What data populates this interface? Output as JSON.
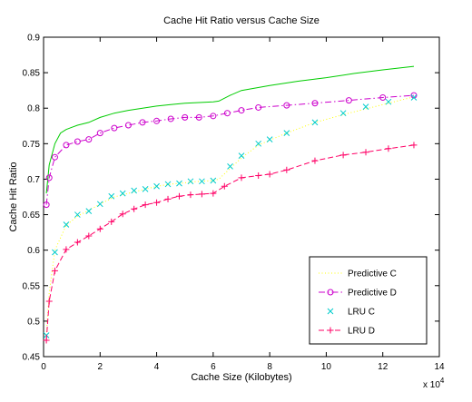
{
  "chart_data": {
    "type": "line",
    "title": "Cache Hit Ratio versus Cache Size",
    "xlabel": "Cache Size (Kilobytes)",
    "ylabel": "Cache Hit Ratio",
    "x_multiplier_label": "x 10",
    "x_multiplier_exponent": "4",
    "xlim": [
      0,
      14
    ],
    "ylim": [
      0.45,
      0.9
    ],
    "x_ticks": [
      0,
      2,
      4,
      6,
      8,
      10,
      12,
      14
    ],
    "x_tick_labels": [
      "0",
      "2",
      "4",
      "6",
      "8",
      "10",
      "12",
      "14"
    ],
    "y_ticks": [
      0.45,
      0.5,
      0.55,
      0.6,
      0.65,
      0.7,
      0.75,
      0.8,
      0.85,
      0.9
    ],
    "y_tick_labels": [
      "0.45",
      "0.5",
      "0.55",
      "0.6",
      "0.65",
      "0.7",
      "0.75",
      "0.8",
      "0.85",
      "0.9"
    ],
    "grid": false,
    "legend_position": "bottom-right",
    "unlabeled_series": [
      {
        "color": "#00cc00",
        "style": "solid",
        "x": [
          0.1,
          0.2,
          0.4,
          0.6,
          0.8,
          1.0,
          1.2,
          1.6,
          2.0,
          2.5,
          3.0,
          3.5,
          4.0,
          4.5,
          5.0,
          5.5,
          6.0,
          6.2,
          6.6,
          7.0,
          8.0,
          9.0,
          10.0,
          11.0,
          12.0,
          13.1
        ],
        "y": [
          0.68,
          0.72,
          0.75,
          0.765,
          0.77,
          0.773,
          0.776,
          0.78,
          0.787,
          0.793,
          0.797,
          0.8,
          0.803,
          0.805,
          0.807,
          0.808,
          0.809,
          0.81,
          0.818,
          0.825,
          0.832,
          0.838,
          0.843,
          0.849,
          0.854,
          0.859
        ]
      }
    ],
    "series": [
      {
        "name": "Predictive C",
        "color": "#ffff00",
        "line_style": "dotted",
        "marker": "none",
        "x": [
          0.1,
          0.2,
          0.4,
          0.8,
          1.2,
          1.6,
          2.0,
          2.5,
          3.0,
          3.5,
          4.0,
          4.5,
          5.0,
          5.5,
          6.0,
          6.2,
          6.6,
          7.0,
          7.6,
          8.6,
          9.6,
          10.8,
          12.0,
          13.1
        ],
        "y": [
          0.48,
          0.54,
          0.6,
          0.635,
          0.648,
          0.656,
          0.665,
          0.675,
          0.68,
          0.685,
          0.69,
          0.693,
          0.695,
          0.697,
          0.698,
          0.7,
          0.715,
          0.73,
          0.748,
          0.765,
          0.78,
          0.793,
          0.805,
          0.816
        ]
      },
      {
        "name": "Predictive D",
        "color": "#cc00cc",
        "line_style": "dashdot",
        "marker": "circle",
        "x": [
          0.1,
          0.2,
          0.4,
          0.8,
          1.2,
          1.6,
          2.0,
          2.5,
          3.0,
          3.5,
          4.0,
          4.5,
          5.0,
          5.5,
          6.0,
          6.5,
          7.0,
          7.6,
          8.6,
          9.6,
          10.8,
          12.0,
          13.1
        ],
        "y": [
          0.664,
          0.702,
          0.731,
          0.748,
          0.753,
          0.756,
          0.765,
          0.772,
          0.776,
          0.78,
          0.782,
          0.785,
          0.787,
          0.787,
          0.789,
          0.793,
          0.797,
          0.801,
          0.804,
          0.807,
          0.811,
          0.815,
          0.818
        ]
      },
      {
        "name": "LRU C",
        "color": "#00cccc",
        "line_style": "none",
        "marker": "x",
        "x": [
          0.1,
          0.4,
          0.8,
          1.2,
          1.6,
          2.0,
          2.4,
          2.8,
          3.2,
          3.6,
          4.0,
          4.4,
          4.8,
          5.2,
          5.6,
          6.0,
          6.6,
          7.0,
          7.6,
          8.0,
          8.6,
          9.6,
          10.6,
          11.4,
          12.2,
          13.1
        ],
        "y": [
          0.48,
          0.597,
          0.636,
          0.65,
          0.655,
          0.665,
          0.676,
          0.68,
          0.684,
          0.686,
          0.69,
          0.693,
          0.694,
          0.697,
          0.697,
          0.698,
          0.718,
          0.733,
          0.75,
          0.756,
          0.765,
          0.78,
          0.793,
          0.802,
          0.809,
          0.815
        ]
      },
      {
        "name": "LRU D",
        "color": "#ff0066",
        "line_style": "dashed",
        "marker": "plus",
        "x": [
          0.1,
          0.2,
          0.4,
          0.8,
          1.2,
          1.6,
          2.0,
          2.4,
          2.8,
          3.2,
          3.6,
          4.0,
          4.4,
          4.8,
          5.2,
          5.6,
          6.0,
          6.4,
          7.0,
          7.6,
          8.0,
          8.6,
          9.6,
          10.6,
          11.4,
          12.2,
          13.1
        ],
        "y": [
          0.473,
          0.528,
          0.571,
          0.601,
          0.611,
          0.62,
          0.63,
          0.64,
          0.651,
          0.658,
          0.664,
          0.667,
          0.672,
          0.676,
          0.678,
          0.679,
          0.68,
          0.69,
          0.702,
          0.705,
          0.707,
          0.713,
          0.726,
          0.734,
          0.738,
          0.743,
          0.748
        ]
      }
    ]
  }
}
